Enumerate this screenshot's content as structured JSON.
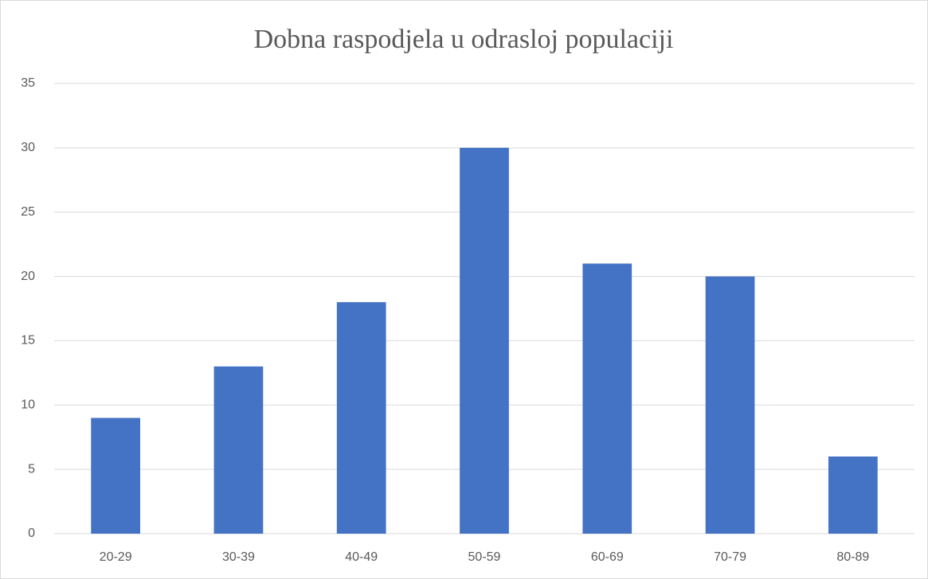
{
  "chart_data": {
    "type": "bar",
    "title": "Dobna raspodjela u odrasloj populaciji",
    "categories": [
      "20-29",
      "30-39",
      "40-49",
      "50-59",
      "60-69",
      "70-79",
      "80-89"
    ],
    "values": [
      9,
      13,
      18,
      30,
      21,
      20,
      6
    ],
    "color": "#4472c4",
    "ylim": [
      0,
      35
    ],
    "yticks": [
      0,
      5,
      10,
      15,
      20,
      25,
      30,
      35
    ],
    "grid": true
  }
}
